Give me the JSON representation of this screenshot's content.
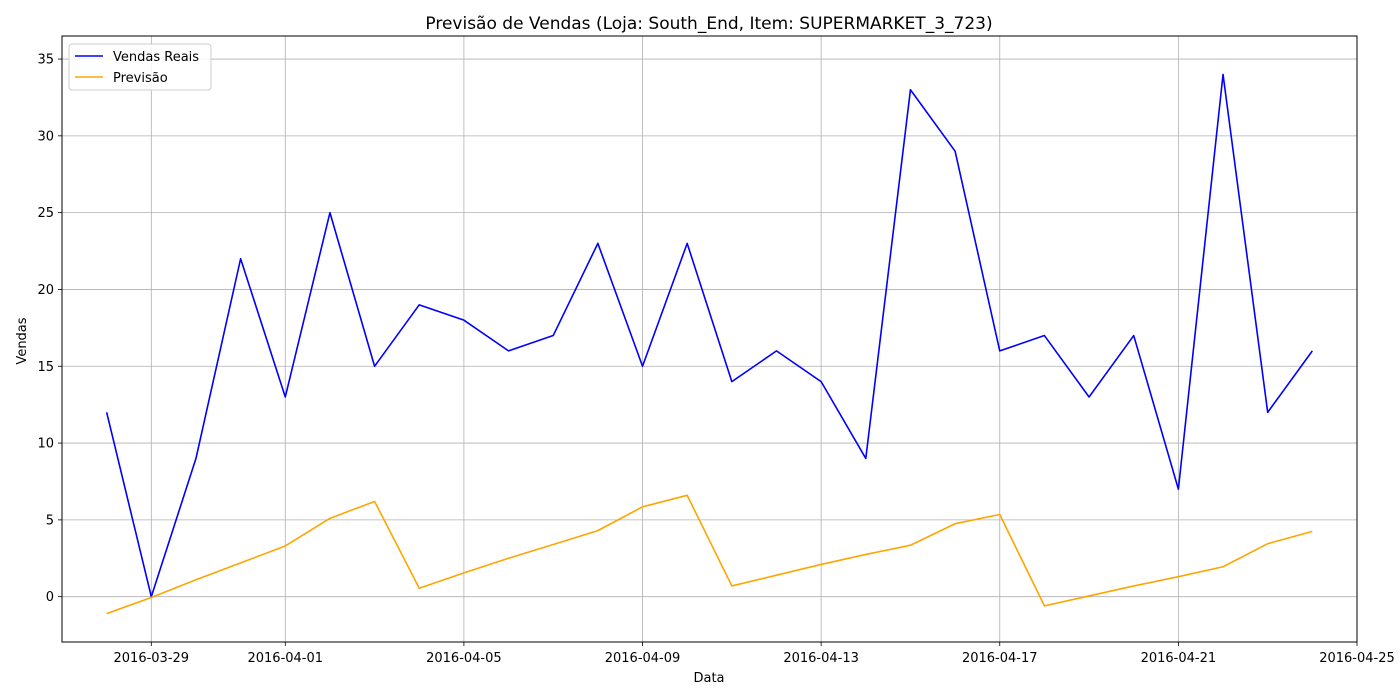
{
  "chart_data": {
    "type": "line",
    "title": "Previsão de Vendas (Loja: South_End, Item: SUPERMARKET_3_723)",
    "xlabel": "Data",
    "ylabel": "Vendas",
    "x": [
      "2016-03-28",
      "2016-03-29",
      "2016-03-30",
      "2016-03-31",
      "2016-04-01",
      "2016-04-02",
      "2016-04-03",
      "2016-04-04",
      "2016-04-05",
      "2016-04-06",
      "2016-04-07",
      "2016-04-08",
      "2016-04-09",
      "2016-04-10",
      "2016-04-11",
      "2016-04-12",
      "2016-04-13",
      "2016-04-14",
      "2016-04-15",
      "2016-04-16",
      "2016-04-17",
      "2016-04-18",
      "2016-04-19",
      "2016-04-20",
      "2016-04-21",
      "2016-04-22",
      "2016-04-23",
      "2016-04-24"
    ],
    "series": [
      {
        "name": "Vendas Reais",
        "color": "#0000ff",
        "values": [
          12,
          0,
          9,
          22,
          13,
          25,
          15,
          19,
          18,
          16,
          17,
          23,
          15,
          23,
          14,
          16,
          14,
          9,
          33,
          29,
          16,
          17,
          13,
          17,
          7,
          34,
          12,
          16
        ]
      },
      {
        "name": "Previsão",
        "color": "#ffa500",
        "values": [
          -1.1,
          -0.05,
          1.1,
          2.2,
          3.3,
          5.1,
          6.2,
          0.55,
          1.55,
          2.5,
          3.4,
          4.3,
          5.85,
          6.6,
          0.7,
          1.4,
          2.1,
          2.75,
          3.35,
          4.75,
          5.35,
          -0.6,
          0.05,
          0.7,
          1.3,
          1.95,
          3.45,
          4.25
        ]
      }
    ],
    "xlim": [
      "2016-03-27",
      "2016-04-25"
    ],
    "ylim": [
      -2.95,
      36.5
    ],
    "xticks": [
      "2016-03-29",
      "2016-04-01",
      "2016-04-05",
      "2016-04-09",
      "2016-04-13",
      "2016-04-17",
      "2016-04-21",
      "2016-04-25"
    ],
    "yticks": [
      0,
      5,
      10,
      15,
      20,
      25,
      30,
      35
    ],
    "grid": true,
    "legend_position": "top-left"
  }
}
